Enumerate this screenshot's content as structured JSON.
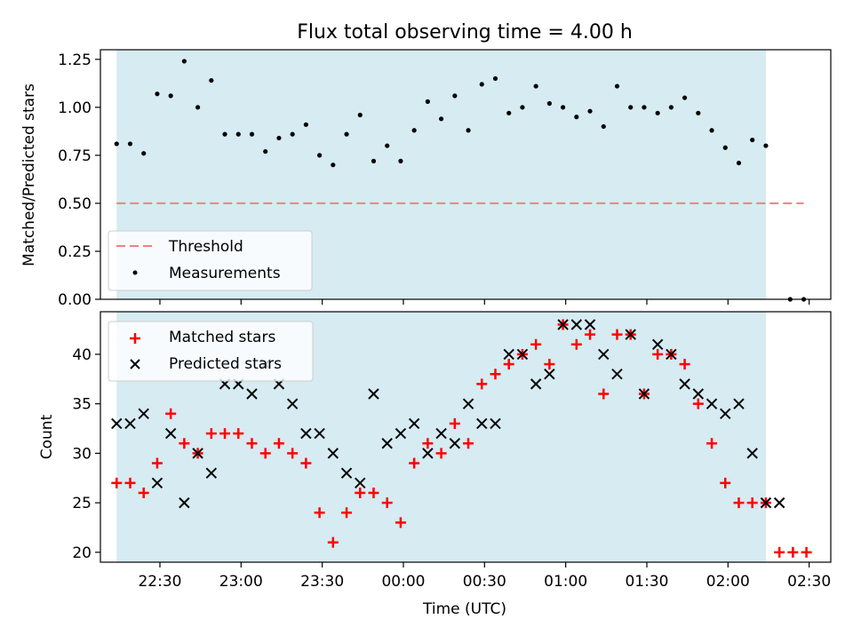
{
  "title": "Flux total observing time = 4.00 h",
  "colors": {
    "band": "#add8e6",
    "threshold": "#f08080",
    "measurement": "#000000",
    "matched": "#ff0000",
    "predicted": "#000000"
  },
  "chart_data": [
    {
      "type": "scatter",
      "ylabel": "Matched/Predicted stars",
      "ylim": [
        0,
        1.3
      ],
      "yticks": [
        0.0,
        0.25,
        0.5,
        0.75,
        1.0,
        1.25
      ],
      "ytick_labels": [
        "0.00",
        "0.25",
        "0.50",
        "0.75",
        "1.00",
        "1.25"
      ],
      "xlim": [
        "22:08",
        "02:38"
      ],
      "observing_band": [
        "22:14",
        "02:14"
      ],
      "legend_position": "lower-left",
      "legend": {
        "threshold": "Threshold",
        "measurements": "Measurements"
      },
      "threshold": {
        "name": "Threshold",
        "y": 0.5,
        "x_start": "22:14",
        "x_end": "02:28",
        "style": "dashed"
      },
      "series": [
        {
          "name": "Measurements",
          "marker": "dot",
          "x": [
            "22:14",
            "22:19",
            "22:24",
            "22:29",
            "22:34",
            "22:39",
            "22:44",
            "22:49",
            "22:54",
            "22:59",
            "23:04",
            "23:09",
            "23:14",
            "23:19",
            "23:24",
            "23:29",
            "23:34",
            "23:39",
            "23:44",
            "23:49",
            "23:54",
            "23:59",
            "00:04",
            "00:09",
            "00:14",
            "00:19",
            "00:24",
            "00:29",
            "00:34",
            "00:39",
            "00:44",
            "00:49",
            "00:54",
            "00:59",
            "01:04",
            "01:09",
            "01:14",
            "01:19",
            "01:24",
            "01:29",
            "01:34",
            "01:39",
            "01:44",
            "01:49",
            "01:54",
            "01:59",
            "02:04",
            "02:09",
            "02:14",
            "02:23",
            "02:28"
          ],
          "y": [
            0.81,
            0.81,
            0.76,
            1.07,
            1.06,
            1.24,
            1.0,
            1.14,
            0.86,
            0.86,
            0.86,
            0.77,
            0.84,
            0.86,
            0.91,
            0.75,
            0.7,
            0.86,
            0.96,
            0.72,
            0.8,
            0.72,
            0.88,
            1.03,
            0.94,
            1.06,
            0.88,
            1.12,
            1.15,
            0.97,
            1.0,
            1.11,
            1.02,
            1.0,
            0.95,
            0.98,
            0.9,
            1.11,
            1.0,
            1.0,
            0.97,
            1.0,
            1.05,
            0.97,
            0.88,
            0.79,
            0.71,
            0.83,
            0.8,
            0.0,
            0.0
          ]
        }
      ]
    },
    {
      "type": "scatter",
      "ylabel": "Count",
      "xlabel": "Time (UTC)",
      "ylim": [
        19,
        44.3
      ],
      "yticks": [
        20,
        25,
        30,
        35,
        40
      ],
      "ytick_labels": [
        "20",
        "25",
        "30",
        "35",
        "40"
      ],
      "xlim": [
        "22:08",
        "02:38"
      ],
      "xticks": [
        "22:30",
        "23:00",
        "23:30",
        "00:00",
        "00:30",
        "01:00",
        "01:30",
        "02:00",
        "02:30"
      ],
      "observing_band": [
        "22:14",
        "02:14"
      ],
      "legend_position": "upper-left",
      "series": [
        {
          "name": "Matched stars",
          "marker": "plus",
          "x": [
            "22:14",
            "22:19",
            "22:24",
            "22:29",
            "22:34",
            "22:39",
            "22:44",
            "22:49",
            "22:54",
            "22:59",
            "23:04",
            "23:09",
            "23:14",
            "23:19",
            "23:24",
            "23:29",
            "23:34",
            "23:39",
            "23:44",
            "23:49",
            "23:54",
            "23:59",
            "00:04",
            "00:09",
            "00:14",
            "00:19",
            "00:24",
            "00:29",
            "00:34",
            "00:39",
            "00:44",
            "00:49",
            "00:54",
            "00:59",
            "01:04",
            "01:09",
            "01:14",
            "01:19",
            "01:24",
            "01:29",
            "01:34",
            "01:39",
            "01:44",
            "01:49",
            "01:54",
            "01:59",
            "02:04",
            "02:09",
            "02:14",
            "02:19",
            "02:24",
            "02:29"
          ],
          "y": [
            27,
            27,
            26,
            29,
            34,
            31,
            30,
            32,
            32,
            32,
            31,
            30,
            31,
            30,
            29,
            24,
            21,
            24,
            26,
            26,
            25,
            23,
            29,
            31,
            30,
            33,
            31,
            37,
            38,
            39,
            40,
            41,
            39,
            43,
            41,
            42,
            36,
            42,
            42,
            36,
            40,
            40,
            39,
            35,
            31,
            27,
            25,
            25,
            25,
            20,
            20,
            20
          ]
        },
        {
          "name": "Predicted stars",
          "marker": "x",
          "x": [
            "22:14",
            "22:19",
            "22:24",
            "22:29",
            "22:34",
            "22:39",
            "22:44",
            "22:49",
            "22:54",
            "22:59",
            "23:04",
            "23:09",
            "23:14",
            "23:19",
            "23:24",
            "23:29",
            "23:34",
            "23:39",
            "23:44",
            "23:49",
            "23:54",
            "23:59",
            "00:04",
            "00:09",
            "00:14",
            "00:19",
            "00:24",
            "00:29",
            "00:34",
            "00:39",
            "00:44",
            "00:49",
            "00:54",
            "00:59",
            "01:04",
            "01:09",
            "01:14",
            "01:19",
            "01:24",
            "01:29",
            "01:34",
            "01:39",
            "01:44",
            "01:49",
            "01:54",
            "01:59",
            "02:04",
            "02:09",
            "02:14",
            "02:19"
          ],
          "y": [
            33,
            33,
            34,
            27,
            32,
            25,
            30,
            28,
            37,
            37,
            36,
            39,
            37,
            35,
            32,
            32,
            30,
            28,
            27,
            36,
            31,
            32,
            33,
            30,
            32,
            31,
            35,
            33,
            33,
            40,
            40,
            37,
            38,
            43,
            43,
            43,
            40,
            38,
            42,
            36,
            41,
            40,
            37,
            36,
            35,
            34,
            35,
            30,
            25,
            25
          ]
        }
      ]
    }
  ]
}
